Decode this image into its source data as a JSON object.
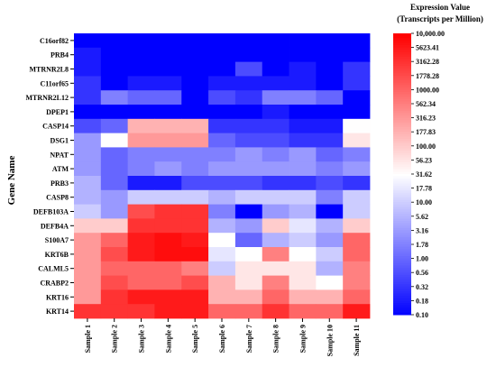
{
  "chart_data": {
    "type": "heatmap",
    "ylabel": "Gene Name",
    "xlabel": "",
    "colorbar_title": [
      "Expression Value",
      "(Transcripts per Million)"
    ],
    "colorbar_ticks": [
      "10,000.00",
      "5623.41",
      "3162.28",
      "1778.28",
      "1000.00",
      "562.34",
      "316.23",
      "177.83",
      "100.00",
      "56.23",
      "31.62",
      "17.78",
      "10.00",
      "5.62",
      "3.16",
      "1.78",
      "1.00",
      "0.56",
      "0.32",
      "0.18",
      "0.10"
    ],
    "colorbar_range": [
      0.1,
      10000
    ],
    "scale": "log",
    "colors": {
      "low": "#0000ff",
      "mid": "#ffffff",
      "high": "#ff0000"
    },
    "columns": [
      "Sample 1",
      "Sample 2",
      "Sample 3",
      "Sample 4",
      "Sample 5",
      "Sample 6",
      "Sample 7",
      "Sample 8",
      "Sample 9",
      "Sample 10",
      "Sample 11"
    ],
    "rows": [
      "C16orf82",
      "PRB4",
      "MTRNR2L8",
      "C11orf65",
      "MTRNR2L12",
      "DPEP1",
      "CASP14",
      "DSG1",
      "NPAT",
      "ATM",
      "PRB3",
      "CASP8",
      "DEFB103A",
      "DEFB4A",
      "S100A7",
      "KRT6B",
      "CALML5",
      "CRABP2",
      "KRT16",
      "KRT14"
    ],
    "values": [
      [
        0.1,
        0.1,
        0.1,
        0.1,
        0.1,
        0.1,
        0.1,
        0.1,
        0.1,
        0.1,
        0.1
      ],
      [
        0.18,
        0.1,
        0.1,
        0.1,
        0.1,
        0.1,
        0.1,
        0.1,
        0.1,
        0.1,
        0.1
      ],
      [
        0.18,
        0.1,
        0.1,
        0.1,
        0.1,
        0.1,
        0.56,
        0.1,
        0.18,
        0.1,
        0.32
      ],
      [
        0.32,
        0.1,
        0.18,
        0.18,
        0.1,
        0.18,
        0.18,
        0.18,
        0.18,
        0.1,
        0.32
      ],
      [
        0.32,
        1.78,
        1.0,
        1.0,
        0.1,
        0.56,
        0.32,
        1.78,
        1.78,
        1.0,
        0.1
      ],
      [
        0.1,
        0.1,
        0.1,
        0.1,
        0.1,
        0.1,
        0.1,
        0.18,
        0.1,
        0.1,
        0.1
      ],
      [
        0.56,
        1.0,
        178,
        178,
        178,
        0.32,
        0.32,
        0.32,
        0.18,
        0.18,
        32
      ],
      [
        3.16,
        32,
        316,
        316,
        316,
        1.0,
        0.56,
        0.56,
        0.32,
        0.32,
        56
      ],
      [
        3.16,
        1.0,
        1.78,
        1.78,
        1.78,
        1.78,
        3.16,
        1.78,
        3.16,
        1.0,
        1.78
      ],
      [
        3.16,
        1.0,
        1.78,
        3.16,
        1.78,
        3.16,
        3.16,
        3.16,
        3.16,
        1.78,
        3.16
      ],
      [
        5.62,
        1.0,
        0.18,
        0.18,
        0.56,
        0.56,
        0.56,
        0.32,
        0.32,
        0.56,
        0.32
      ],
      [
        5.62,
        3.16,
        10,
        10,
        10,
        5.62,
        10,
        10,
        10,
        1.78,
        10
      ],
      [
        10,
        3.16,
        1778,
        3162,
        3162,
        1.78,
        0.1,
        3.16,
        5.62,
        0.1,
        10
      ],
      [
        100,
        100,
        3162,
        3162,
        3162,
        5.62,
        3.16,
        100,
        17.8,
        5.62,
        100
      ],
      [
        316,
        1000,
        5623,
        7500,
        5623,
        31.6,
        1.0,
        5.62,
        10,
        3.16,
        1000
      ],
      [
        316,
        1778,
        5623,
        7500,
        7500,
        17.8,
        31.6,
        562,
        31.6,
        10,
        1000
      ],
      [
        316,
        1000,
        1000,
        1000,
        562,
        10,
        56.2,
        56.2,
        56.2,
        5.62,
        562
      ],
      [
        316,
        1778,
        1000,
        1000,
        1778,
        178,
        56.2,
        562,
        56.2,
        31.6,
        562
      ],
      [
        316,
        3162,
        5623,
        5623,
        5623,
        178,
        178,
        1000,
        178,
        178,
        1000
      ],
      [
        3162,
        3162,
        3162,
        5623,
        5623,
        1000,
        1000,
        3162,
        1000,
        1000,
        5623
      ]
    ]
  }
}
